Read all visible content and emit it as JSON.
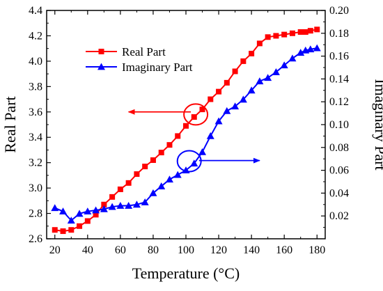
{
  "chart_data": {
    "type": "line",
    "xlabel": "Temperature (°C)",
    "ylabel": "Real Part",
    "y2label": "Imaginary Part",
    "xlim": [
      15,
      185
    ],
    "ylim": [
      2.6,
      4.4
    ],
    "y2lim": [
      0.0,
      0.2
    ],
    "x_ticks": [
      "20",
      "40",
      "60",
      "80",
      "100",
      "120",
      "140",
      "160",
      "180"
    ],
    "y_ticks": [
      "2.6",
      "2.8",
      "3.0",
      "3.2",
      "3.4",
      "3.6",
      "3.8",
      "4.0",
      "4.2",
      "4.4"
    ],
    "y2_ticks": [
      "0.02",
      "0.04",
      "0.06",
      "0.08",
      "0.10",
      "0.12",
      "0.14",
      "0.16",
      "0.18",
      "0.20"
    ],
    "legend_position": "top-left",
    "series": [
      {
        "name": "Real Part",
        "axis": "left",
        "color": "#ff0000",
        "marker": "square",
        "x": [
          20,
          25,
          30,
          35,
          40,
          45,
          50,
          55,
          60,
          65,
          70,
          75,
          80,
          85,
          90,
          95,
          100,
          105,
          110,
          115,
          120,
          125,
          130,
          135,
          140,
          145,
          150,
          155,
          160,
          165,
          170,
          173,
          176,
          180
        ],
        "values": [
          2.67,
          2.66,
          2.67,
          2.7,
          2.74,
          2.79,
          2.87,
          2.93,
          2.99,
          3.04,
          3.11,
          3.17,
          3.22,
          3.28,
          3.34,
          3.41,
          3.49,
          3.56,
          3.62,
          3.7,
          3.76,
          3.83,
          3.92,
          4.0,
          4.06,
          4.14,
          4.19,
          4.2,
          4.21,
          4.22,
          4.23,
          4.23,
          4.24,
          4.25
        ]
      },
      {
        "name": "Imaginary Part",
        "axis": "right",
        "color": "#0000ff",
        "marker": "triangle",
        "x": [
          20,
          25,
          30,
          35,
          40,
          45,
          50,
          55,
          60,
          65,
          70,
          75,
          80,
          85,
          90,
          95,
          100,
          105,
          110,
          115,
          120,
          125,
          130,
          135,
          140,
          145,
          150,
          155,
          160,
          165,
          170,
          173,
          176,
          180
        ],
        "values": [
          0.027,
          0.024,
          0.016,
          0.022,
          0.024,
          0.025,
          0.026,
          0.028,
          0.029,
          0.029,
          0.03,
          0.032,
          0.04,
          0.046,
          0.052,
          0.056,
          0.06,
          0.066,
          0.076,
          0.09,
          0.103,
          0.112,
          0.116,
          0.122,
          0.13,
          0.138,
          0.141,
          0.146,
          0.152,
          0.158,
          0.163,
          0.165,
          0.166,
          0.167
        ]
      }
    ],
    "annotations": [
      {
        "type": "ellipse",
        "x": 106,
        "y": 3.58,
        "axis": "left",
        "color": "#ff0000"
      },
      {
        "type": "arrow",
        "direction": "left",
        "from_x": 103,
        "to_x": 65,
        "y": 3.6,
        "axis": "left",
        "color": "#ff0000"
      },
      {
        "type": "ellipse",
        "x": 102,
        "y": 0.068,
        "axis": "right",
        "color": "#0000ff"
      },
      {
        "type": "arrow",
        "direction": "right",
        "from_x": 108,
        "to_x": 145,
        "y": 0.0685,
        "axis": "right",
        "color": "#0000ff"
      }
    ]
  }
}
